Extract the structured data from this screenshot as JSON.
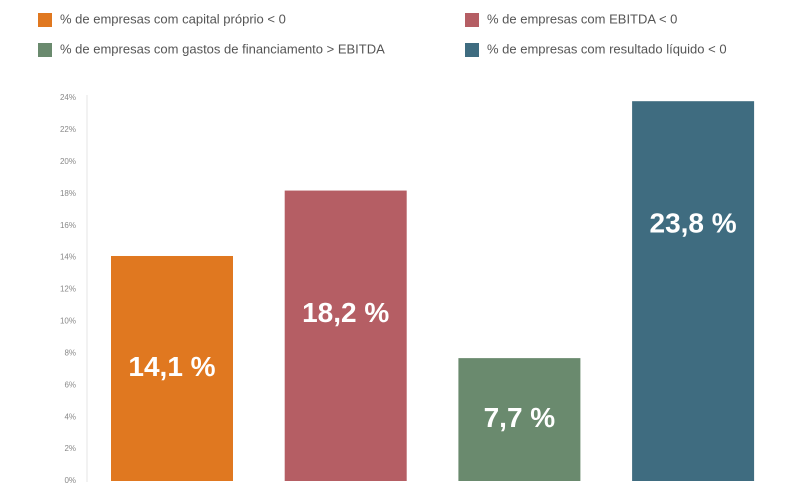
{
  "chart_data": {
    "type": "bar",
    "series": [
      {
        "name": "% de empresas com capital próprio < 0",
        "color": "#e07820",
        "values": [
          14.1
        ],
        "value_labels": [
          "14,1 %"
        ]
      },
      {
        "name": "% de empresas com EBITDA < 0",
        "color": "#b55e64",
        "values": [
          18.2
        ],
        "value_labels": [
          "18,2 %"
        ]
      },
      {
        "name": "% de empresas com gastos de financiamento > EBITDA",
        "color": "#6a8a6e",
        "values": [
          7.7
        ],
        "value_labels": [
          "7,7 %"
        ]
      },
      {
        "name": "% de empresas com resultado líquido < 0",
        "color": "#3f6c80",
        "values": [
          23.8
        ],
        "value_labels": [
          "23,8 %"
        ]
      }
    ],
    "ylim": [
      0,
      24
    ],
    "yticks": [
      {
        "value": 0,
        "label": "0%"
      },
      {
        "value": 2,
        "label": "2%"
      },
      {
        "value": 4,
        "label": "4%"
      },
      {
        "value": 6,
        "label": "6%"
      },
      {
        "value": 8,
        "label": "8%"
      },
      {
        "value": 10,
        "label": "10%"
      },
      {
        "value": 12,
        "label": "12%"
      },
      {
        "value": 14,
        "label": "14%"
      },
      {
        "value": 16,
        "label": "16%"
      },
      {
        "value": 18,
        "label": "18%"
      },
      {
        "value": 20,
        "label": "20%"
      },
      {
        "value": 22,
        "label": "22%"
      },
      {
        "value": 24,
        "label": "24%"
      }
    ],
    "grid": false
  }
}
